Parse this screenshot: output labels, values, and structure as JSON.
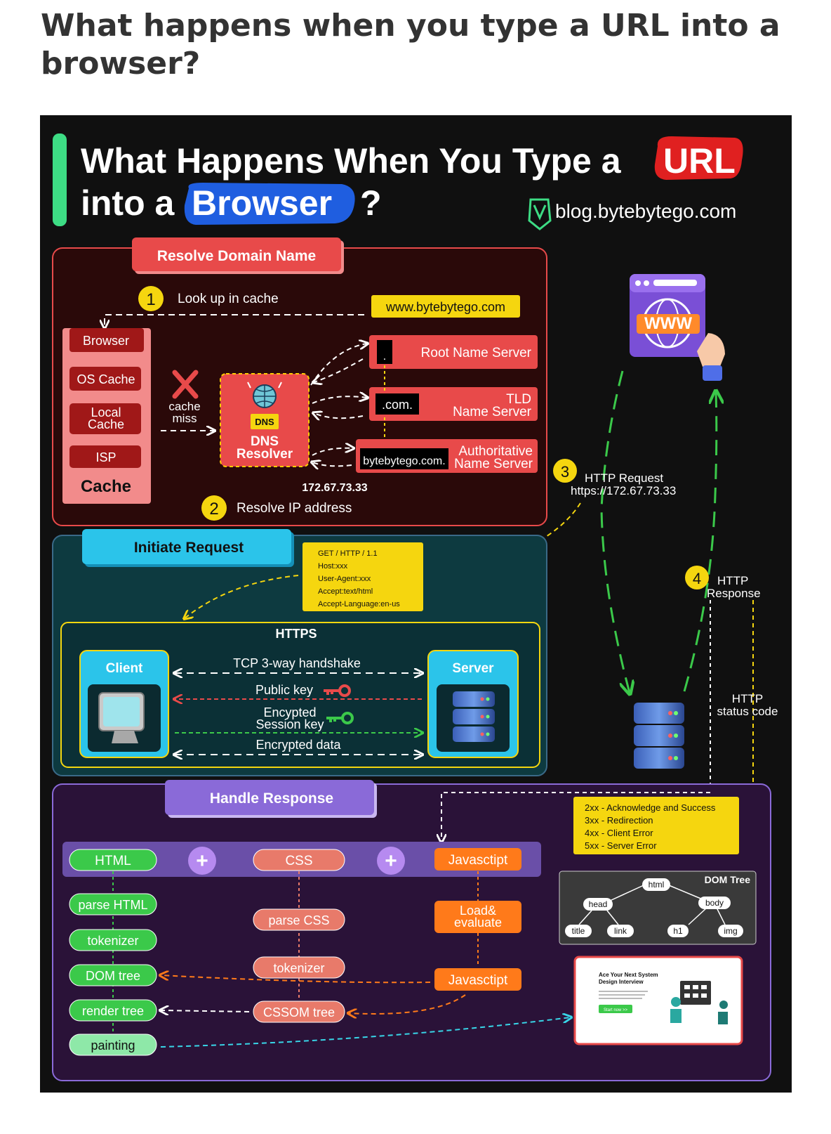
{
  "page": {
    "title": "What happens when you type a URL into a browser?"
  },
  "header": {
    "line1": "What Happens When You Type a",
    "url_word": "URL",
    "line2": "into a",
    "browser_word": "Browser",
    "question": "?",
    "site": "blog.bytebytego.com"
  },
  "resolve": {
    "title": "Resolve Domain Name",
    "step1_num": "1",
    "step1_label": "Look up in cache",
    "domain": "www.bytebytego.com",
    "cache_items": [
      "Browser",
      "OS Cache",
      "Local\nCache",
      "ISP"
    ],
    "cache_title": "Cache",
    "cache_miss": "cache\nmiss",
    "dns_badge": "DNS",
    "dns_resolver": "DNS\nResolver",
    "root_dot": ".",
    "root_label": "Root Name Server",
    "tld_tag": ".com.",
    "tld_label": "TLD\nName Server",
    "auth_tag": "bytebytego.com.",
    "auth_label": "Authoritative\nName Server",
    "ip": "172.67.73.33",
    "step2_num": "2",
    "step2_label": "Resolve IP address"
  },
  "flow": {
    "step3_num": "3",
    "step3_label": "HTTP Request",
    "step3_url": "https://172.67.73.33",
    "step4_num": "4",
    "step4_label": "HTTP\nResponse",
    "status_label": "HTTP\nstatus code",
    "www": "WWW"
  },
  "request": {
    "title": "Initiate Request",
    "http_lines": [
      "GET / HTTP / 1.1",
      "Host:xxx",
      "User-Agent:xxx",
      "Accept:text/html",
      "Accept-Language:en-us"
    ],
    "https_title": "HTTPS",
    "client": "Client",
    "server": "Server",
    "handshake": "TCP 3-way handshake",
    "public_key": "Public key",
    "session_key": "Encypted\nSession key",
    "encrypted_data": "Encrypted data"
  },
  "response": {
    "title": "Handle Response",
    "status_codes": [
      "2xx - Acknowledge and Success",
      "3xx - Redirection",
      "4xx - Client Error",
      "5xx - Server Error"
    ],
    "html": "HTML",
    "css": "CSS",
    "js": "Javasctipt",
    "plus": "+",
    "html_steps": [
      "parse HTML",
      "tokenizer",
      "DOM tree",
      "render tree",
      "painting"
    ],
    "css_steps": [
      "parse CSS",
      "tokenizer",
      "CSSOM tree"
    ],
    "js_steps": [
      "Load&\nevaluate",
      "Javasctipt"
    ],
    "dom_tree_title": "DOM Tree",
    "dom_nodes": [
      "html",
      "head",
      "body",
      "title",
      "link",
      "h1",
      "img"
    ],
    "ad_title": "Ace Your Next System\nDesign Interview",
    "ad_button": "Start now >>"
  },
  "colors": {
    "red_border": "#e84a4a",
    "red_bg": "#2a0909",
    "teal_bg": "#0d3a40",
    "purple_bg": "#2a1238",
    "yellow": "#f5d60f",
    "green": "#3bc94a",
    "orange": "#ff7a1a"
  }
}
